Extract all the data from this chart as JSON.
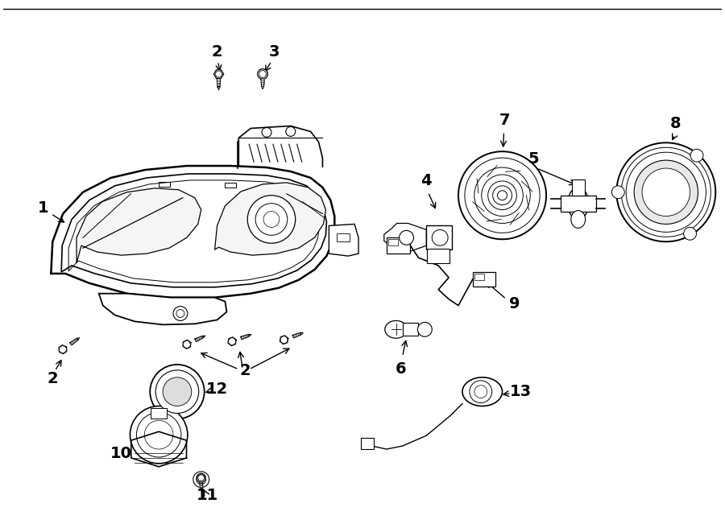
{
  "background": "#ffffff",
  "line_color": "#000000",
  "fig_width": 9.0,
  "fig_height": 6.61,
  "dpi": 100
}
